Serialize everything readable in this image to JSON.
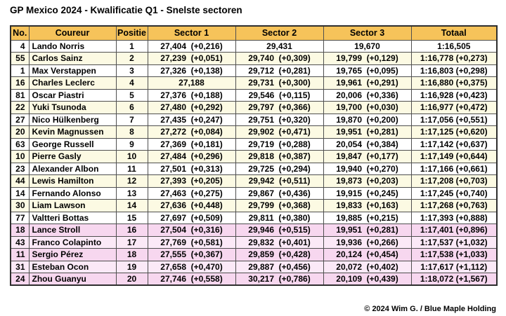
{
  "title": "GP Mexico 2024 - Kwalificatie Q1 - Snelste sectoren",
  "footer": "© 2024 Wim G. / Blue Maple Holding",
  "colors": {
    "header_bg": "#F6C35A",
    "row_plain": "#FFFFFF",
    "row_tint": "#FCFAE3",
    "row_out_plain": "#FBE9F7",
    "row_out_tint": "#F7D7EF",
    "grid_line": "#4F4F4F",
    "outer_border": "#2E2E2E",
    "text": "#000000"
  },
  "chart_data": {
    "type": "table",
    "title": "GP Mexico 2024 - Kwalificatie Q1 - Snelste sectoren",
    "columns": [
      "No.",
      "Coureur",
      "Positie",
      "Sector 1",
      "Sector 2",
      "Sector 3",
      "Totaal"
    ],
    "rows": [
      {
        "no": "4",
        "coureur": "Lando Norris",
        "positie": "1",
        "sector1": "27,404  (+0,216)",
        "sector2": "29,431",
        "sector3": "19,670",
        "totaal": "1:16,505",
        "eliminated": false
      },
      {
        "no": "55",
        "coureur": "Carlos Sainz",
        "positie": "2",
        "sector1": "27,239  (+0,051)",
        "sector2": "29,740  (+0,309)",
        "sector3": "19,799  (+0,129)",
        "totaal": "1:16,778 (+0,273)",
        "eliminated": false
      },
      {
        "no": "1",
        "coureur": "Max Verstappen",
        "positie": "3",
        "sector1": "27,326  (+0,138)",
        "sector2": "29,712  (+0,281)",
        "sector3": "19,765  (+0,095)",
        "totaal": "1:16,803 (+0,298)",
        "eliminated": false
      },
      {
        "no": "16",
        "coureur": "Charles Leclerc",
        "positie": "4",
        "sector1": "27,188",
        "sector2": "29,731  (+0,300)",
        "sector3": "19,961  (+0,291)",
        "totaal": "1:16,880 (+0,375)",
        "eliminated": false
      },
      {
        "no": "81",
        "coureur": "Oscar Piastri",
        "positie": "5",
        "sector1": "27,376  (+0,188)",
        "sector2": "29,546  (+0,115)",
        "sector3": "20,006  (+0,336)",
        "totaal": "1:16,928 (+0,423)",
        "eliminated": false
      },
      {
        "no": "22",
        "coureur": "Yuki Tsunoda",
        "positie": "6",
        "sector1": "27,480  (+0,292)",
        "sector2": "29,797  (+0,366)",
        "sector3": "19,700  (+0,030)",
        "totaal": "1:16,977 (+0,472)",
        "eliminated": false
      },
      {
        "no": "27",
        "coureur": "Nico Hülkenberg",
        "positie": "7",
        "sector1": "27,435  (+0,247)",
        "sector2": "29,751  (+0,320)",
        "sector3": "19,870  (+0,200)",
        "totaal": "1:17,056 (+0,551)",
        "eliminated": false
      },
      {
        "no": "20",
        "coureur": "Kevin Magnussen",
        "positie": "8",
        "sector1": "27,272  (+0,084)",
        "sector2": "29,902  (+0,471)",
        "sector3": "19,951  (+0,281)",
        "totaal": "1:17,125 (+0,620)",
        "eliminated": false
      },
      {
        "no": "63",
        "coureur": "George Russell",
        "positie": "9",
        "sector1": "27,369  (+0,181)",
        "sector2": "29,719  (+0,288)",
        "sector3": "20,054  (+0,384)",
        "totaal": "1:17,142 (+0,637)",
        "eliminated": false
      },
      {
        "no": "10",
        "coureur": "Pierre Gasly",
        "positie": "10",
        "sector1": "27,484  (+0,296)",
        "sector2": "29,818  (+0,387)",
        "sector3": "19,847  (+0,177)",
        "totaal": "1:17,149 (+0,644)",
        "eliminated": false
      },
      {
        "no": "23",
        "coureur": "Alexander Albon",
        "positie": "11",
        "sector1": "27,501  (+0,313)",
        "sector2": "29,725  (+0,294)",
        "sector3": "19,940  (+0,270)",
        "totaal": "1:17,166 (+0,661)",
        "eliminated": false
      },
      {
        "no": "44",
        "coureur": "Lewis Hamilton",
        "positie": "12",
        "sector1": "27,393  (+0,205)",
        "sector2": "29,942  (+0,511)",
        "sector3": "19,873  (+0,203)",
        "totaal": "1:17,208 (+0,703)",
        "eliminated": false
      },
      {
        "no": "14",
        "coureur": "Fernando Alonso",
        "positie": "13",
        "sector1": "27,463  (+0,275)",
        "sector2": "29,867  (+0,436)",
        "sector3": "19,915  (+0,245)",
        "totaal": "1:17,245 (+0,740)",
        "eliminated": false
      },
      {
        "no": "30",
        "coureur": "Liam Lawson",
        "positie": "14",
        "sector1": "27,636  (+0,448)",
        "sector2": "29,799  (+0,368)",
        "sector3": "19,833  (+0,163)",
        "totaal": "1:17,268 (+0,763)",
        "eliminated": false
      },
      {
        "no": "77",
        "coureur": "Valtteri Bottas",
        "positie": "15",
        "sector1": "27,697  (+0,509)",
        "sector2": "29,811  (+0,380)",
        "sector3": "19,885  (+0,215)",
        "totaal": "1:17,393 (+0,888)",
        "eliminated": false
      },
      {
        "no": "18",
        "coureur": "Lance Stroll",
        "positie": "16",
        "sector1": "27,504  (+0,316)",
        "sector2": "29,946  (+0,515)",
        "sector3": "19,951  (+0,281)",
        "totaal": "1:17,401 (+0,896)",
        "eliminated": true
      },
      {
        "no": "43",
        "coureur": "Franco Colapinto",
        "positie": "17",
        "sector1": "27,769  (+0,581)",
        "sector2": "29,832  (+0,401)",
        "sector3": "19,936  (+0,266)",
        "totaal": "1:17,537 (+1,032)",
        "eliminated": true
      },
      {
        "no": "11",
        "coureur": "Sergio Pérez",
        "positie": "18",
        "sector1": "27,555  (+0,367)",
        "sector2": "29,859  (+0,428)",
        "sector3": "20,124  (+0,454)",
        "totaal": "1:17,538 (+1,033)",
        "eliminated": true
      },
      {
        "no": "31",
        "coureur": "Esteban Ocon",
        "positie": "19",
        "sector1": "27,658  (+0,470)",
        "sector2": "29,887  (+0,456)",
        "sector3": "20,072  (+0,402)",
        "totaal": "1:17,617 (+1,112)",
        "eliminated": true
      },
      {
        "no": "24",
        "coureur": "Zhou Guanyu",
        "positie": "20",
        "sector1": "27,746  (+0,558)",
        "sector2": "30,217  (+0,786)",
        "sector3": "20,109  (+0,439)",
        "totaal": "1:18,072 (+1,567)",
        "eliminated": true
      }
    ]
  }
}
